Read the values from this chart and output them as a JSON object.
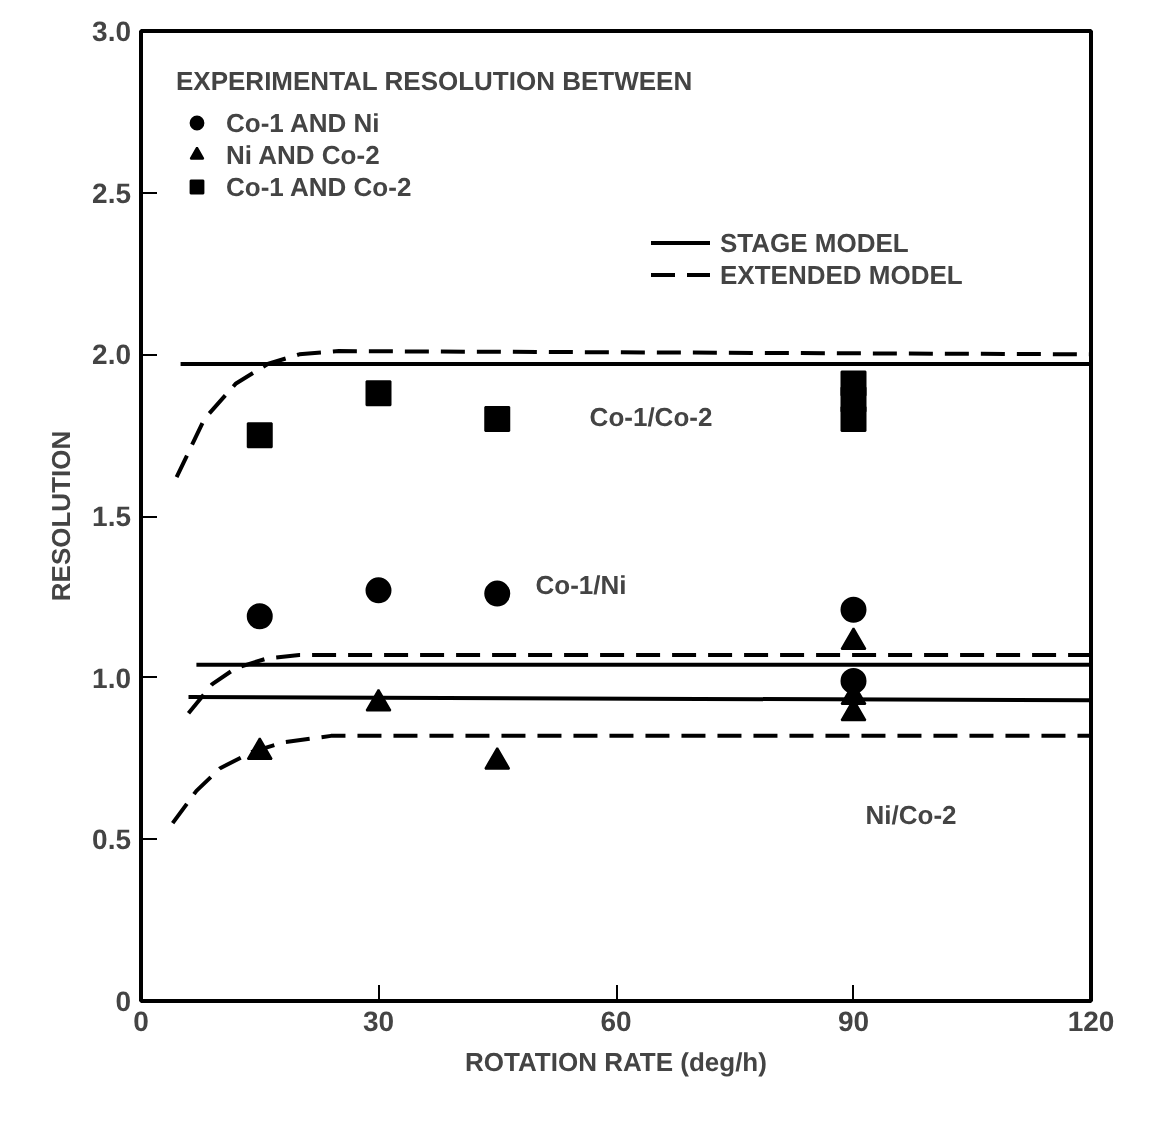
{
  "chart_data": {
    "type": "scatter",
    "xlabel": "ROTATION RATE (deg/h)",
    "ylabel": "RESOLUTION",
    "legend_title": "EXPERIMENTAL RESOLUTION BETWEEN",
    "xlim": [
      0,
      120
    ],
    "ylim": [
      0,
      3.0
    ],
    "xticks": [
      0,
      30,
      60,
      90,
      120
    ],
    "yticks": [
      0,
      {
        "value": 0.5,
        "label": "0.5"
      },
      {
        "value": 1.0,
        "label": "1.0"
      },
      {
        "value": 1.5,
        "label": "1.5"
      },
      {
        "value": 2.0,
        "label": "2.0"
      },
      {
        "value": 2.5,
        "label": "2.5"
      },
      {
        "value": 3.0,
        "label": "3.0"
      }
    ],
    "grid": false,
    "legend": "top left",
    "series": [
      {
        "name": "Co-1 AND Ni",
        "marker": "circle",
        "color": "#000000",
        "x": [
          15,
          30,
          45,
          90,
          90
        ],
        "values": [
          1.19,
          1.27,
          1.26,
          1.21,
          0.99
        ]
      },
      {
        "name": "Ni AND Co-2",
        "marker": "triangle",
        "color": "#000000",
        "x": [
          15,
          30,
          45,
          90,
          90,
          90
        ],
        "values": [
          0.77,
          0.92,
          0.74,
          1.11,
          0.94,
          0.89
        ]
      },
      {
        "name": "Co-1 AND Co-2",
        "marker": "square",
        "color": "#000000",
        "x": [
          15,
          30,
          45,
          90,
          90,
          90
        ],
        "values": [
          1.75,
          1.88,
          1.8,
          1.91,
          1.86,
          1.8
        ]
      },
      {
        "type": "line",
        "name": "STAGE MODEL",
        "line_style": "solid",
        "color": "#000000",
        "x": [
          5,
          120
        ],
        "values": [
          1.97,
          1.97
        ]
      },
      {
        "type": "line",
        "name": "EXTENDED MODEL",
        "line_style": "dashed",
        "color": "#000000",
        "x": [
          4.5,
          8,
          12,
          16,
          20,
          25,
          120
        ],
        "values": [
          1.62,
          1.8,
          1.91,
          1.97,
          2.0,
          2.01,
          2.0
        ]
      },
      {
        "type": "line",
        "line_style": "solid",
        "color": "#000000",
        "x": [
          7,
          120
        ],
        "values": [
          1.04,
          1.04
        ]
      },
      {
        "type": "line",
        "line_style": "dashed",
        "color": "#000000",
        "x": [
          6,
          9,
          12,
          16,
          20,
          120
        ],
        "values": [
          0.89,
          0.98,
          1.03,
          1.06,
          1.07,
          1.07
        ]
      },
      {
        "type": "line",
        "line_style": "solid",
        "color": "#000000",
        "x": [
          6,
          120
        ],
        "values": [
          0.94,
          0.93
        ]
      },
      {
        "type": "line",
        "line_style": "dashed",
        "color": "#000000",
        "x": [
          4,
          7,
          10,
          14,
          18,
          24,
          120
        ],
        "values": [
          0.55,
          0.65,
          0.72,
          0.77,
          0.8,
          0.82,
          0.82
        ]
      }
    ],
    "annotations": [
      "Co-1/Co-2",
      "Co-1/Ni",
      "Ni/Co-2"
    ]
  }
}
